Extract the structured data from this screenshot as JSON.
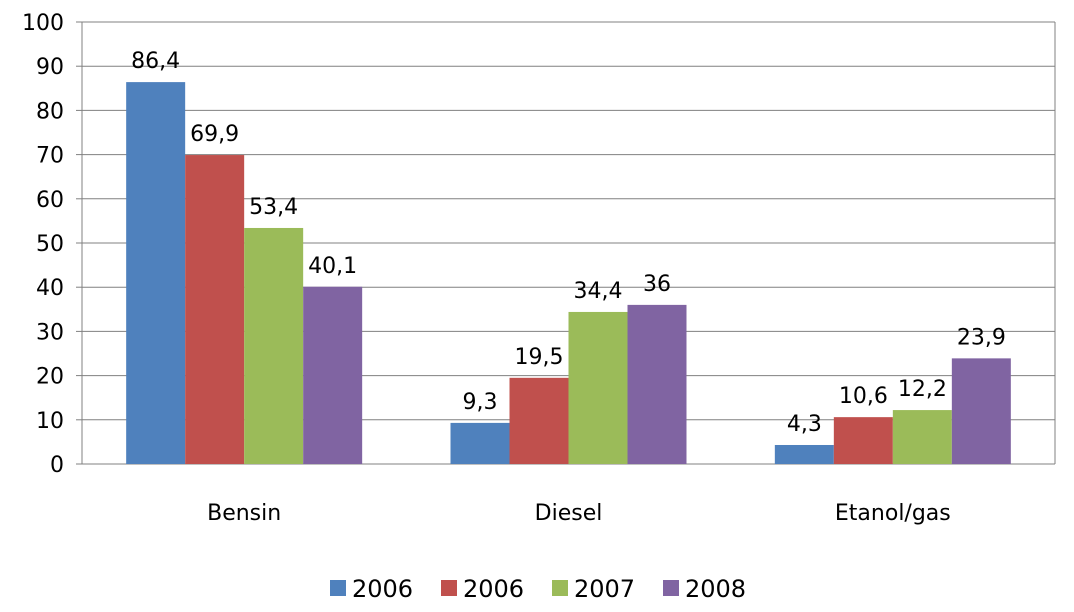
{
  "chart_data": {
    "type": "bar",
    "title": "",
    "xlabel": "",
    "ylabel": "",
    "categories": [
      "Bensin",
      "Diesel",
      "Etanol/gas"
    ],
    "ylim": [
      0,
      100
    ],
    "yticks": [
      0,
      10,
      20,
      30,
      40,
      50,
      60,
      70,
      80,
      90,
      100
    ],
    "grid": true,
    "legend_position": "bottom",
    "series": [
      {
        "name": "2006",
        "color": "#4F81BD",
        "values": [
          86.4,
          9.3,
          4.3
        ],
        "labels": [
          "86,4",
          "9,3",
          "4,3"
        ]
      },
      {
        "name": "2006",
        "color": "#C0504D",
        "values": [
          69.9,
          19.5,
          10.6
        ],
        "labels": [
          "69,9",
          "19,5",
          "10,6"
        ]
      },
      {
        "name": "2007",
        "color": "#9BBB59",
        "values": [
          53.4,
          34.4,
          12.2
        ],
        "labels": [
          "53,4",
          "34,4",
          "12,2"
        ]
      },
      {
        "name": "2008",
        "color": "#8064A2",
        "values": [
          40.1,
          36,
          23.9
        ],
        "labels": [
          "40,1",
          "36",
          "23,9"
        ]
      }
    ]
  }
}
